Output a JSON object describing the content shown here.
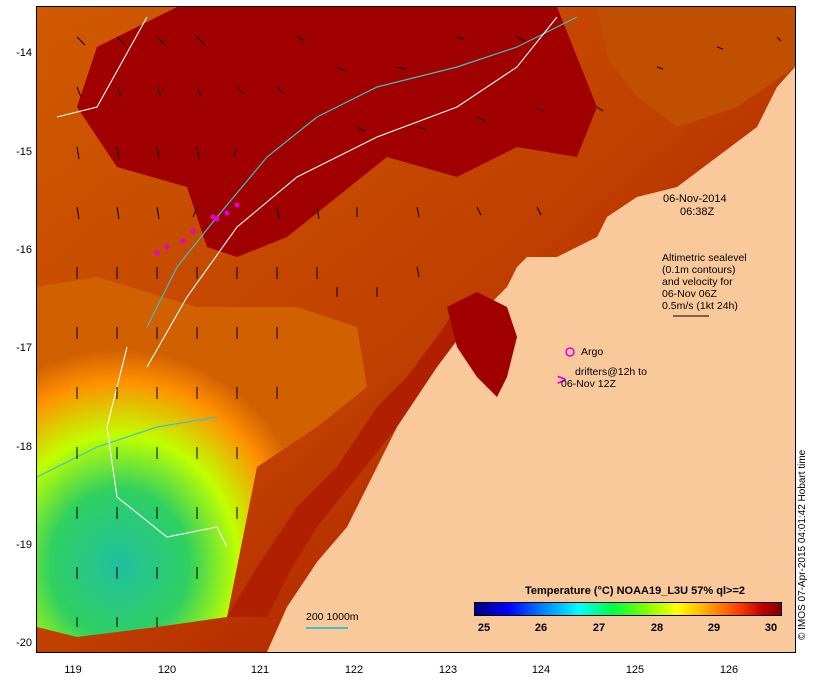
{
  "map": {
    "date": "06-Nov-2014",
    "time": "06:38Z",
    "altimetry_note": [
      "Altimetric sealevel",
      "(0.1m contours)",
      "and velocity for",
      "06-Nov 06Z",
      "0.5m/s (1kt 24h)"
    ],
    "argo_label": "Argo",
    "drifters_label": [
      "drifters@12h to",
      "06-Nov 12Z"
    ],
    "depth_legend": "200  1000m",
    "credit": "© IMOS 07-Apr-2015 04:01:42 Hobart time",
    "colors": {
      "land": "#f9c99b",
      "warm": "#a00000",
      "argo": "#e000e0",
      "contour200": "#40c0c0",
      "contour1000": "#ffffff"
    }
  },
  "axes": {
    "lat_ticks": [
      "-14",
      "-15",
      "-16",
      "-17",
      "-18",
      "-19",
      "-20"
    ],
    "lon_ticks": [
      "119",
      "120",
      "121",
      "122",
      "123",
      "124",
      "125",
      "126"
    ]
  },
  "colorbar": {
    "title": "Temperature (°C) NOAA19_L3U 57% ql>=2",
    "ticks": [
      "25",
      "26",
      "27",
      "28",
      "29",
      "30"
    ]
  }
}
